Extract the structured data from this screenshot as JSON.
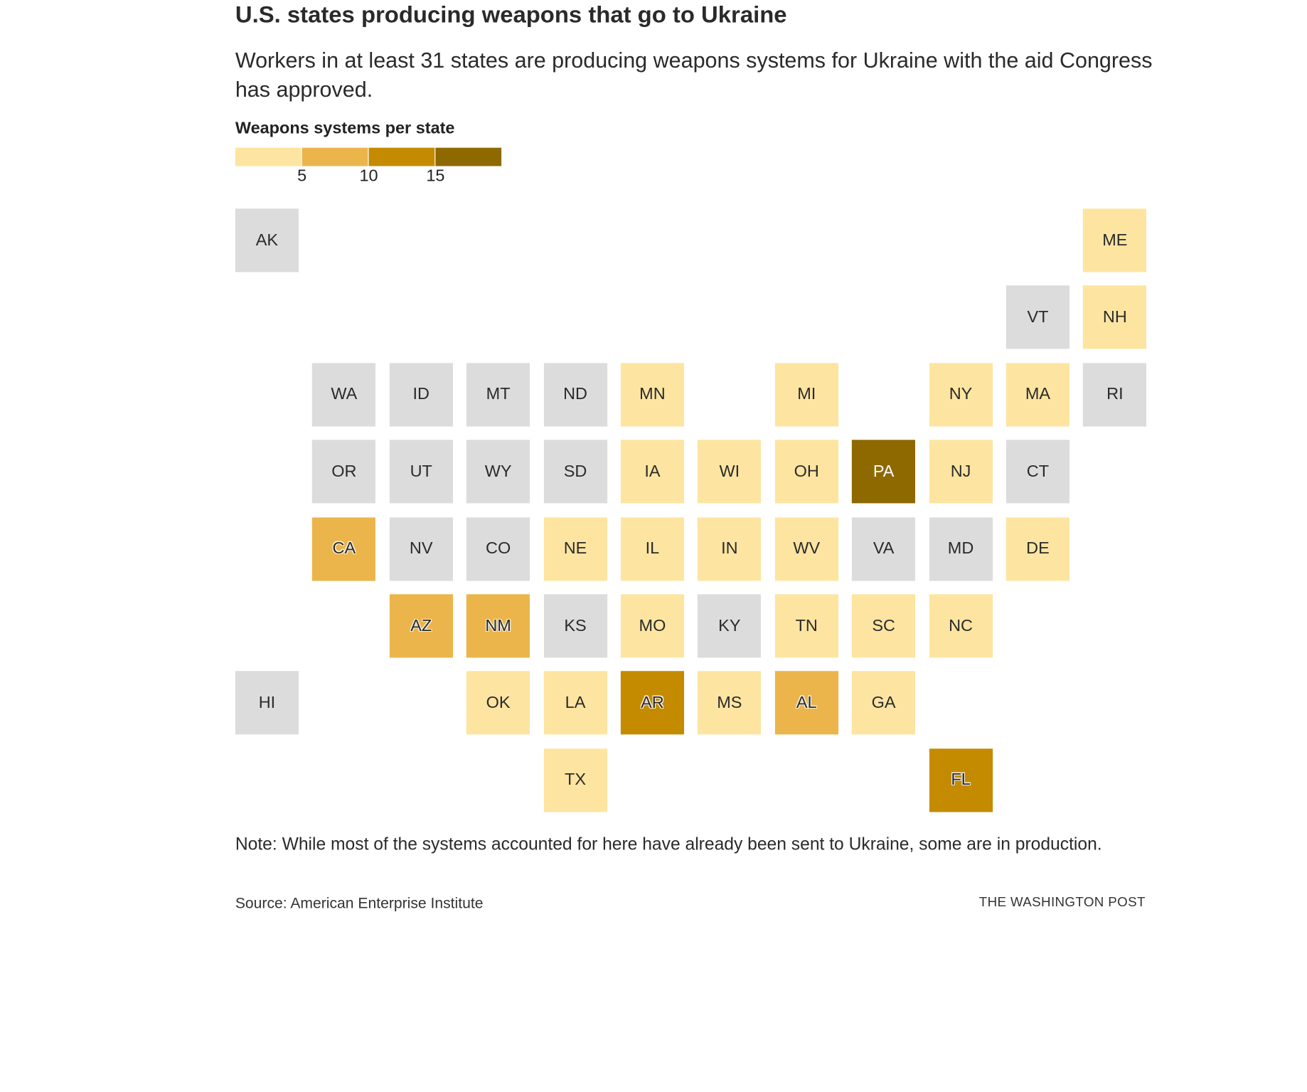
{
  "title": "U.S. states producing weapons that go to Ukraine",
  "subtitle": "Workers in at least 31 states are producing weapons systems for Ukraine with the aid Congress has approved.",
  "legend": {
    "title": "Weapons systems per state",
    "colors": [
      "#fde5a1",
      "#ebb54b",
      "#c48b00",
      "#8e6900"
    ],
    "ticks": [
      "5",
      "10",
      "15"
    ]
  },
  "colors": {
    "none": "#dcdcdc",
    "bin1": "#fde5a1",
    "bin2": "#ebb54b",
    "bin3": "#c48b00",
    "bin4": "#8e6900"
  },
  "chart_data": {
    "type": "heatmap",
    "subtype": "state tile grid map",
    "states": [
      {
        "abbr": "AK",
        "col": 0,
        "row": 0,
        "bin": 0
      },
      {
        "abbr": "ME",
        "col": 11,
        "row": 0,
        "bin": 1
      },
      {
        "abbr": "VT",
        "col": 10,
        "row": 1,
        "bin": 0
      },
      {
        "abbr": "NH",
        "col": 11,
        "row": 1,
        "bin": 1
      },
      {
        "abbr": "WA",
        "col": 1,
        "row": 2,
        "bin": 0
      },
      {
        "abbr": "ID",
        "col": 2,
        "row": 2,
        "bin": 0
      },
      {
        "abbr": "MT",
        "col": 3,
        "row": 2,
        "bin": 0
      },
      {
        "abbr": "ND",
        "col": 4,
        "row": 2,
        "bin": 0
      },
      {
        "abbr": "MN",
        "col": 5,
        "row": 2,
        "bin": 1
      },
      {
        "abbr": "MI",
        "col": 7,
        "row": 2,
        "bin": 1
      },
      {
        "abbr": "NY",
        "col": 9,
        "row": 2,
        "bin": 1
      },
      {
        "abbr": "MA",
        "col": 10,
        "row": 2,
        "bin": 1
      },
      {
        "abbr": "RI",
        "col": 11,
        "row": 2,
        "bin": 0
      },
      {
        "abbr": "OR",
        "col": 1,
        "row": 3,
        "bin": 0
      },
      {
        "abbr": "UT",
        "col": 2,
        "row": 3,
        "bin": 0
      },
      {
        "abbr": "WY",
        "col": 3,
        "row": 3,
        "bin": 0
      },
      {
        "abbr": "SD",
        "col": 4,
        "row": 3,
        "bin": 0
      },
      {
        "abbr": "IA",
        "col": 5,
        "row": 3,
        "bin": 1
      },
      {
        "abbr": "WI",
        "col": 6,
        "row": 3,
        "bin": 1
      },
      {
        "abbr": "OH",
        "col": 7,
        "row": 3,
        "bin": 1
      },
      {
        "abbr": "PA",
        "col": 8,
        "row": 3,
        "bin": 4
      },
      {
        "abbr": "NJ",
        "col": 9,
        "row": 3,
        "bin": 1
      },
      {
        "abbr": "CT",
        "col": 10,
        "row": 3,
        "bin": 0
      },
      {
        "abbr": "CA",
        "col": 1,
        "row": 4,
        "bin": 2
      },
      {
        "abbr": "NV",
        "col": 2,
        "row": 4,
        "bin": 0
      },
      {
        "abbr": "CO",
        "col": 3,
        "row": 4,
        "bin": 0
      },
      {
        "abbr": "NE",
        "col": 4,
        "row": 4,
        "bin": 1
      },
      {
        "abbr": "IL",
        "col": 5,
        "row": 4,
        "bin": 1
      },
      {
        "abbr": "IN",
        "col": 6,
        "row": 4,
        "bin": 1
      },
      {
        "abbr": "WV",
        "col": 7,
        "row": 4,
        "bin": 1
      },
      {
        "abbr": "VA",
        "col": 8,
        "row": 4,
        "bin": 0
      },
      {
        "abbr": "MD",
        "col": 9,
        "row": 4,
        "bin": 0
      },
      {
        "abbr": "DE",
        "col": 10,
        "row": 4,
        "bin": 1
      },
      {
        "abbr": "AZ",
        "col": 2,
        "row": 5,
        "bin": 2
      },
      {
        "abbr": "NM",
        "col": 3,
        "row": 5,
        "bin": 2
      },
      {
        "abbr": "KS",
        "col": 4,
        "row": 5,
        "bin": 0
      },
      {
        "abbr": "MO",
        "col": 5,
        "row": 5,
        "bin": 1
      },
      {
        "abbr": "KY",
        "col": 6,
        "row": 5,
        "bin": 0
      },
      {
        "abbr": "TN",
        "col": 7,
        "row": 5,
        "bin": 1
      },
      {
        "abbr": "SC",
        "col": 8,
        "row": 5,
        "bin": 1
      },
      {
        "abbr": "NC",
        "col": 9,
        "row": 5,
        "bin": 1
      },
      {
        "abbr": "HI",
        "col": 0,
        "row": 6,
        "bin": 0
      },
      {
        "abbr": "OK",
        "col": 3,
        "row": 6,
        "bin": 1
      },
      {
        "abbr": "LA",
        "col": 4,
        "row": 6,
        "bin": 1
      },
      {
        "abbr": "AR",
        "col": 5,
        "row": 6,
        "bin": 3
      },
      {
        "abbr": "MS",
        "col": 6,
        "row": 6,
        "bin": 1
      },
      {
        "abbr": "AL",
        "col": 7,
        "row": 6,
        "bin": 2
      },
      {
        "abbr": "GA",
        "col": 8,
        "row": 6,
        "bin": 1
      },
      {
        "abbr": "TX",
        "col": 4,
        "row": 7,
        "bin": 1
      },
      {
        "abbr": "FL",
        "col": 9,
        "row": 7,
        "bin": 3
      }
    ]
  },
  "note": "Note: While most of the systems accounted for here have already been sent to Ukraine, some are in production.",
  "source": "Source: American Enterprise Institute",
  "credit": "THE WASHINGTON POST"
}
